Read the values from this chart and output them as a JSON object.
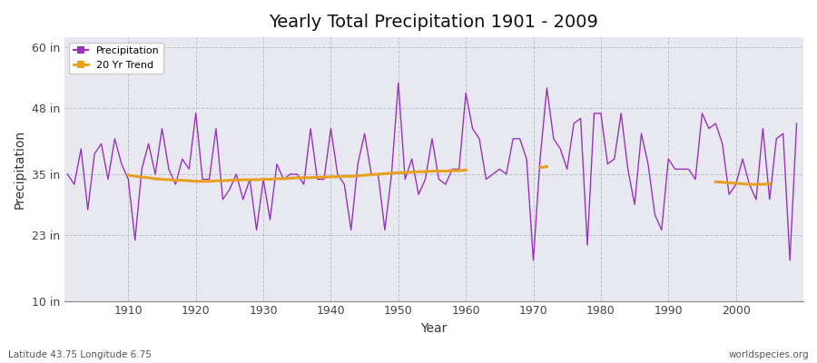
{
  "title": "Yearly Total Precipitation 1901 - 2009",
  "xlabel": "Year",
  "ylabel": "Precipitation",
  "subtitle_left": "Latitude 43.75 Longitude 6.75",
  "subtitle_right": "worldspecies.org",
  "ylim": [
    10,
    62
  ],
  "yticks": [
    10,
    23,
    35,
    48,
    60
  ],
  "ytick_labels": [
    "10 in",
    "23 in",
    "35 in",
    "48 in",
    "60 in"
  ],
  "xlim": [
    1900.5,
    2010
  ],
  "precip_color": "#9933bb",
  "trend_color": "#e8a020",
  "bg_color": "#e8e8f0",
  "fig_bg_color": "#ffffff",
  "legend_precip": "Precipitation",
  "legend_trend": "20 Yr Trend",
  "years": [
    1901,
    1902,
    1903,
    1904,
    1905,
    1906,
    1907,
    1908,
    1909,
    1910,
    1911,
    1912,
    1913,
    1914,
    1915,
    1916,
    1917,
    1918,
    1919,
    1920,
    1921,
    1922,
    1923,
    1924,
    1925,
    1926,
    1927,
    1928,
    1929,
    1930,
    1931,
    1932,
    1933,
    1934,
    1935,
    1936,
    1937,
    1938,
    1939,
    1940,
    1941,
    1942,
    1943,
    1944,
    1945,
    1946,
    1947,
    1948,
    1949,
    1950,
    1951,
    1952,
    1953,
    1954,
    1955,
    1956,
    1957,
    1958,
    1959,
    1960,
    1961,
    1962,
    1963,
    1964,
    1965,
    1966,
    1967,
    1968,
    1969,
    1970,
    1971,
    1972,
    1973,
    1974,
    1975,
    1976,
    1977,
    1978,
    1979,
    1980,
    1981,
    1982,
    1983,
    1984,
    1985,
    1986,
    1987,
    1988,
    1989,
    1990,
    1991,
    1992,
    1993,
    1994,
    1995,
    1996,
    1997,
    1998,
    1999,
    2000,
    2001,
    2002,
    2003,
    2004,
    2005,
    2006,
    2007,
    2008,
    2009
  ],
  "precip": [
    35,
    33,
    40,
    28,
    39,
    41,
    34,
    42,
    37,
    34,
    22,
    36,
    41,
    35,
    44,
    36,
    33,
    38,
    36,
    47,
    34,
    34,
    44,
    30,
    32,
    35,
    30,
    34,
    24,
    34,
    26,
    37,
    34,
    35,
    35,
    33,
    44,
    34,
    34,
    44,
    35,
    33,
    24,
    37,
    43,
    35,
    35,
    24,
    35,
    53,
    34,
    38,
    31,
    34,
    42,
    34,
    33,
    36,
    36,
    51,
    44,
    42,
    34,
    35,
    36,
    35,
    42,
    42,
    38,
    18,
    38,
    52,
    42,
    40,
    36,
    45,
    46,
    21,
    47,
    47,
    37,
    38,
    47,
    36,
    29,
    43,
    37,
    27,
    24,
    38,
    36,
    36,
    36,
    34,
    47,
    44,
    45,
    41,
    31,
    33,
    38,
    33,
    30,
    44,
    30,
    42,
    43,
    18,
    45
  ],
  "trend_seg1_years": [
    1910,
    1911,
    1912,
    1913,
    1914,
    1915,
    1916,
    1917,
    1918,
    1919,
    1920,
    1921,
    1922,
    1923,
    1924,
    1925,
    1926,
    1927,
    1928,
    1929,
    1930,
    1931,
    1932,
    1933,
    1934,
    1935,
    1936,
    1937,
    1938,
    1939,
    1940,
    1941,
    1942,
    1943,
    1944,
    1945,
    1946,
    1947,
    1948,
    1949,
    1950,
    1951,
    1952,
    1953,
    1954,
    1955,
    1956,
    1957,
    1958,
    1959,
    1960
  ],
  "trend_seg1": [
    34.8,
    34.6,
    34.4,
    34.3,
    34.1,
    34.0,
    33.9,
    33.8,
    33.8,
    33.7,
    33.6,
    33.6,
    33.6,
    33.7,
    33.7,
    33.8,
    33.8,
    33.9,
    33.9,
    33.9,
    34.0,
    34.0,
    34.1,
    34.1,
    34.2,
    34.3,
    34.3,
    34.3,
    34.4,
    34.4,
    34.5,
    34.5,
    34.6,
    34.6,
    34.7,
    34.8,
    34.9,
    35.0,
    35.1,
    35.2,
    35.3,
    35.3,
    35.4,
    35.5,
    35.5,
    35.6,
    35.6,
    35.6,
    35.7,
    35.7,
    35.8
  ],
  "trend_seg2_years": [
    1971,
    1972
  ],
  "trend_seg2": [
    36.3,
    36.5
  ],
  "trend_seg3_years": [
    1997,
    1998,
    1999,
    2000,
    2001,
    2002,
    2003,
    2004,
    2005
  ],
  "trend_seg3": [
    33.5,
    33.4,
    33.3,
    33.2,
    33.1,
    33.0,
    33.0,
    33.0,
    33.1
  ]
}
